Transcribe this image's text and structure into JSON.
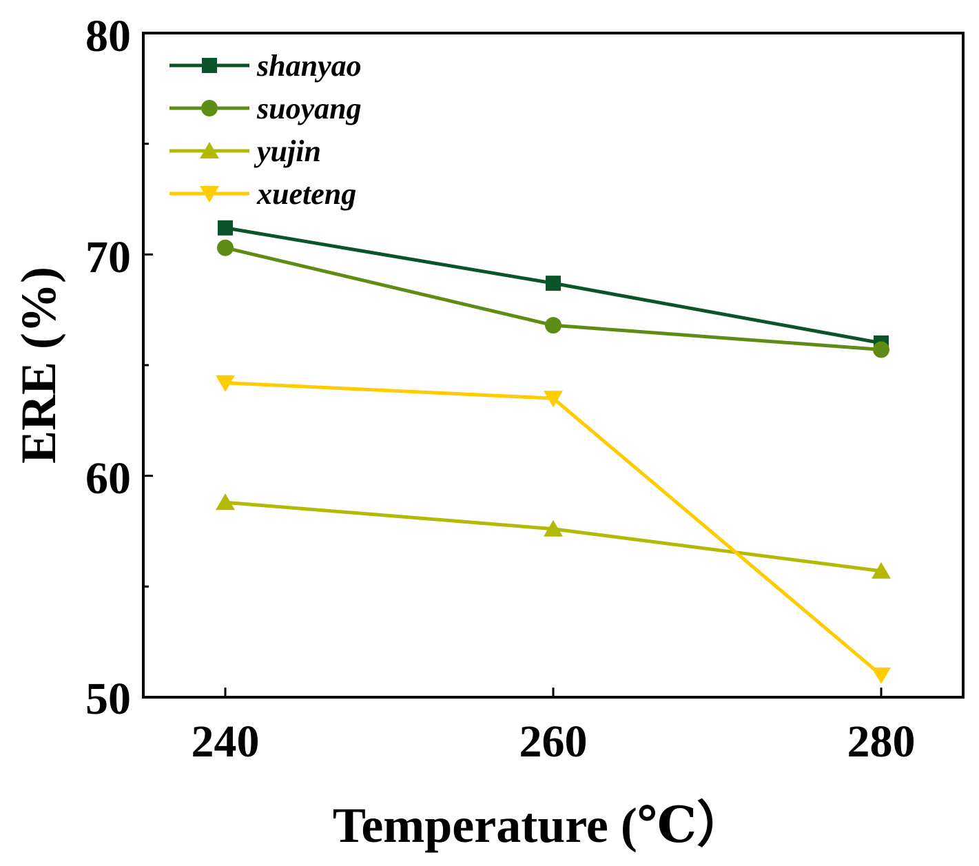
{
  "chart_data": {
    "type": "line",
    "title": "",
    "xlabel": "Temperature (℃）",
    "ylabel": "ERE (%)",
    "x": [
      240,
      260,
      280
    ],
    "x_ticks": [
      "240",
      "260",
      "280"
    ],
    "xlim": [
      235,
      285
    ],
    "ylim": [
      50,
      80
    ],
    "y_major_ticks": [
      "50",
      "60",
      "70",
      "80"
    ],
    "y_minor_ticks": [
      55,
      65,
      75
    ],
    "grid": false,
    "legend_position": "top-left",
    "series": [
      {
        "name": "shanyao",
        "marker": "square",
        "color": "#0B5429",
        "values": [
          71.2,
          68.7,
          66.0
        ]
      },
      {
        "name": "suoyang",
        "marker": "circle",
        "color": "#5E8C14",
        "values": [
          70.3,
          66.8,
          65.7
        ]
      },
      {
        "name": "yujin",
        "marker": "triangle-up",
        "color": "#B3BA06",
        "values": [
          58.8,
          57.6,
          55.7
        ]
      },
      {
        "name": "xueteng",
        "marker": "triangle-down",
        "color": "#FFCC00",
        "values": [
          64.2,
          63.5,
          51.0
        ]
      }
    ]
  }
}
